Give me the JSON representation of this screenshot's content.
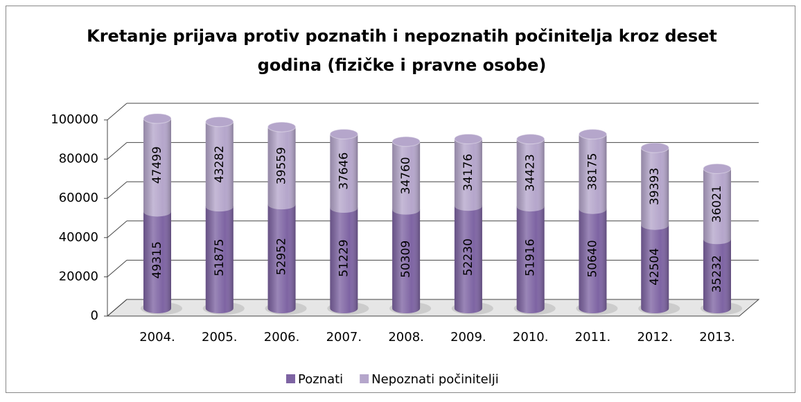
{
  "chart_data": {
    "type": "bar",
    "stacked": true,
    "title": [
      "Kretanje prijava protiv poznatih i nepoznatih počinitelja kroz deset",
      "godina (fizičke i pravne osobe)"
    ],
    "categories": [
      "2004.",
      "2005.",
      "2006.",
      "2007.",
      "2008.",
      "2009.",
      "2010.",
      "2011.",
      "2012.",
      "2013."
    ],
    "series": [
      {
        "name": "Poznati",
        "color": "#7e64a3",
        "values": [
          49315,
          51875,
          52952,
          51229,
          50309,
          52230,
          51916,
          50640,
          42504,
          35232
        ]
      },
      {
        "name": "Nepoznati počinitelji",
        "color": "#b5a6cb",
        "values": [
          47499,
          43282,
          39559,
          37646,
          34760,
          34176,
          34423,
          38175,
          39393,
          36021
        ]
      }
    ],
    "ylim": [
      0,
      100000
    ],
    "yticks": [
      0,
      20000,
      40000,
      60000,
      80000,
      100000
    ],
    "grid": true,
    "legend": "bottom"
  }
}
